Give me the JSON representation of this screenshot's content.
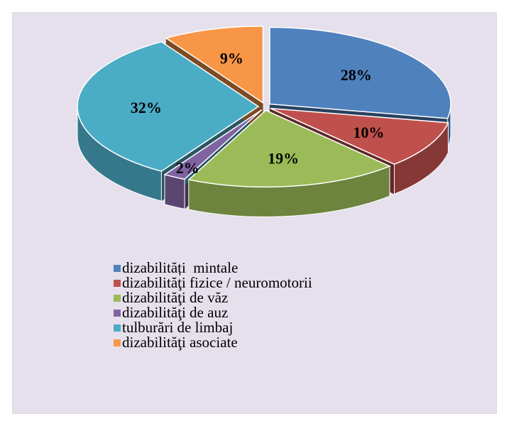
{
  "chart_data": {
    "type": "pie",
    "categories": [
      "dizabilități  mintale",
      "dizabilităţi fizice / neuromotorii",
      "dizabilităţi de văz",
      "dizabilităţi de auz",
      "tulburări de limbaj",
      "dizabilităţi asociate"
    ],
    "values": [
      28,
      10,
      19,
      2,
      32,
      9
    ],
    "value_labels": [
      "28%",
      "10%",
      "19%",
      "2%",
      "32%",
      "9%"
    ],
    "colors": [
      "#4f81bd",
      "#c0504d",
      "#9bbb59",
      "#8064a2",
      "#4bacc6",
      "#f79646"
    ],
    "legend": "bottom"
  }
}
